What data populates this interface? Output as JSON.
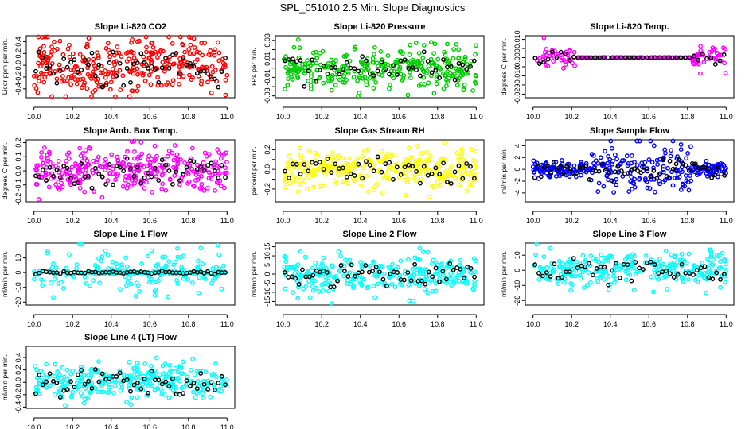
{
  "page": {
    "title": "SPL_051010  2.5 Min. Slope Diagnostics"
  },
  "chart_data": [
    {
      "type": "scatter",
      "title": "Slope Li-820 CO2",
      "xlabel": "",
      "ylabel": "Licor ppm per min.",
      "color": "#ff0000",
      "x_range": [
        10.0,
        11.0
      ],
      "ylim": [
        -0.55,
        0.5
      ],
      "xticks": [
        10.0,
        10.2,
        10.4,
        10.6,
        10.8,
        11.0
      ],
      "xtick_labels": [
        "10.0",
        "10.2",
        "10.4",
        "10.6",
        "10.8",
        "11.0"
      ],
      "yticks": [
        -0.4,
        -0.2,
        0.0,
        0.2,
        0.4
      ],
      "ytick_labels": [
        "-0.4",
        "-0.2",
        "0.0",
        "0.2",
        "0.4"
      ],
      "pattern": "uniform",
      "spread": 0.28,
      "n_points": 320,
      "n_black": 55,
      "seed": 11
    },
    {
      "type": "scatter",
      "title": "Slope Li-820 Pressure",
      "xlabel": "",
      "ylabel": "kPa per min.",
      "color": "#00cc00",
      "x_range": [
        10.0,
        11.0
      ],
      "ylim": [
        -0.032,
        0.035
      ],
      "xticks": [
        10.0,
        10.2,
        10.4,
        10.6,
        10.8,
        11.0
      ],
      "xtick_labels": [
        "10.0",
        "10.2",
        "10.4",
        "10.6",
        "10.8",
        "11.0"
      ],
      "yticks": [
        -0.03,
        -0.02,
        -0.01,
        0.0,
        0.01,
        0.02,
        0.03
      ],
      "ytick_labels": [
        "-0.03",
        "",
        "-0.01",
        "",
        "0.01",
        "",
        "0.03"
      ],
      "pattern": "uniform",
      "spread": 0.012,
      "n_points": 320,
      "n_black": 50,
      "seed": 23
    },
    {
      "type": "scatter",
      "title": "Slope Li-820 Temp.",
      "xlabel": "",
      "ylabel": "degrees C per min.",
      "color": "#ff00ff",
      "x_range": [
        10.0,
        11.0
      ],
      "ylim": [
        -0.022,
        0.012
      ],
      "xticks": [
        10.0,
        10.2,
        10.4,
        10.6,
        10.8,
        11.0
      ],
      "xtick_labels": [
        "10.0",
        "10.2",
        "10.4",
        "10.6",
        "10.8",
        "11.0"
      ],
      "yticks": [
        -0.02,
        -0.015,
        -0.01,
        -0.005,
        0.0,
        0.005,
        0.01
      ],
      "ytick_labels": [
        "-0.020",
        "",
        "-0.010",
        "",
        "0.000",
        "",
        "0.010"
      ],
      "pattern": "edges",
      "spread": 0.004,
      "n_points": 220,
      "n_black": 45,
      "seed": 37
    },
    {
      "type": "scatter",
      "title": "Slope Amb. Box Temp.",
      "xlabel": "",
      "ylabel": "degrees C per min.",
      "color": "#ff00ff",
      "x_range": [
        10.0,
        11.0
      ],
      "ylim": [
        -0.22,
        0.22
      ],
      "xticks": [
        10.0,
        10.2,
        10.4,
        10.6,
        10.8,
        11.0
      ],
      "xtick_labels": [
        "10.0",
        "10.2",
        "10.4",
        "10.6",
        "10.8",
        "11.0"
      ],
      "yticks": [
        -0.2,
        -0.1,
        0.0,
        0.1,
        0.2
      ],
      "ytick_labels": [
        "-0.2",
        "-0.1",
        "0.0",
        "0.1",
        "0.2"
      ],
      "pattern": "uniform",
      "spread": 0.09,
      "n_points": 320,
      "n_black": 55,
      "seed": 41
    },
    {
      "type": "scatter",
      "title": "Slope Gas Stream RH",
      "xlabel": "",
      "ylabel": "percent per min.",
      "color": "#ffff00",
      "x_range": [
        10.0,
        11.0
      ],
      "ylim": [
        -0.33,
        0.3
      ],
      "xticks": [
        10.0,
        10.2,
        10.4,
        10.6,
        10.8,
        11.0
      ],
      "xtick_labels": [
        "10.0",
        "10.2",
        "10.4",
        "10.6",
        "10.8",
        "11.0"
      ],
      "yticks": [
        -0.2,
        -0.1,
        0.0,
        0.1,
        0.2
      ],
      "ytick_labels": [
        "-0.2",
        "",
        "0.0",
        "",
        "0.2"
      ],
      "pattern": "uniform",
      "spread": 0.11,
      "n_points": 300,
      "n_black": 50,
      "seed": 53
    },
    {
      "type": "scatter",
      "title": "Slope Sample Flow",
      "xlabel": "",
      "ylabel": "ml/min per min.",
      "color": "#0000ff",
      "x_range": [
        10.0,
        11.0
      ],
      "ylim": [
        -5.5,
        5.0
      ],
      "xticks": [
        10.0,
        10.2,
        10.4,
        10.6,
        10.8,
        11.0
      ],
      "xtick_labels": [
        "10.0",
        "10.2",
        "10.4",
        "10.6",
        "10.8",
        "11.0"
      ],
      "yticks": [
        -4,
        -2,
        0,
        2,
        4
      ],
      "ytick_labels": [
        "-4",
        "-2",
        "0",
        "2",
        "4"
      ],
      "pattern": "middle",
      "spread": 2.0,
      "n_points": 320,
      "n_black": 60,
      "seed": 67
    },
    {
      "type": "scatter",
      "title": "Slope Line 1 Flow",
      "xlabel": "",
      "ylabel": "ml/min per min.",
      "color": "#00ffff",
      "x_range": [
        10.0,
        11.0
      ],
      "ylim": [
        -22,
        20
      ],
      "xticks": [
        10.0,
        10.2,
        10.4,
        10.6,
        10.8,
        11.0
      ],
      "xtick_labels": [
        "10.0",
        "10.2",
        "10.4",
        "10.6",
        "10.8",
        "11.0"
      ],
      "yticks": [
        -20,
        -10,
        0,
        10
      ],
      "ytick_labels": [
        "-20",
        "-10",
        "0",
        "10"
      ],
      "pattern": "flat",
      "spread": 9.0,
      "n_points": 260,
      "n_black": 55,
      "seed": 71
    },
    {
      "type": "scatter",
      "title": "Slope Line 2 Flow",
      "xlabel": "",
      "ylabel": "ml/min per min.",
      "color": "#00ffff",
      "x_range": [
        10.0,
        11.0
      ],
      "ylim": [
        -17,
        17
      ],
      "xticks": [
        10.0,
        10.2,
        10.4,
        10.6,
        10.8,
        11.0
      ],
      "xtick_labels": [
        "10.0",
        "10.2",
        "10.4",
        "10.6",
        "10.8",
        "11.0"
      ],
      "yticks": [
        -15,
        -10,
        -5,
        0,
        5,
        10,
        15
      ],
      "ytick_labels": [
        "-15",
        "-10",
        "-5",
        "0",
        "5",
        "10",
        "15"
      ],
      "pattern": "uniform",
      "spread": 5.5,
      "n_points": 280,
      "n_black": 55,
      "seed": 83
    },
    {
      "type": "scatter",
      "title": "Slope Line 3 Flow",
      "xlabel": "",
      "ylabel": "ml/min per min.",
      "color": "#00ffff",
      "x_range": [
        10.0,
        11.0
      ],
      "ylim": [
        -23,
        18
      ],
      "xticks": [
        10.0,
        10.2,
        10.4,
        10.6,
        10.8,
        11.0
      ],
      "xtick_labels": [
        "10.0",
        "10.2",
        "10.4",
        "10.6",
        "10.8",
        "11.0"
      ],
      "yticks": [
        -20,
        -10,
        0,
        10
      ],
      "ytick_labels": [
        "-20",
        "-10",
        "0",
        "10"
      ],
      "pattern": "uniform",
      "spread": 7.0,
      "n_points": 280,
      "n_black": 50,
      "seed": 97
    },
    {
      "type": "scatter",
      "title": "Slope Line 4 (LT) Flow",
      "xlabel": "",
      "ylabel": "ml/min per min.",
      "color": "#00ffff",
      "x_range": [
        10.0,
        11.0
      ],
      "ylim": [
        -0.42,
        0.58
      ],
      "xticks": [
        10.0,
        10.2,
        10.4,
        10.6,
        10.8,
        11.0
      ],
      "xtick_labels": [
        "10.0",
        "10.2",
        "10.4",
        "10.6",
        "10.8",
        "11.0"
      ],
      "yticks": [
        -0.4,
        -0.2,
        0.0,
        0.2,
        0.4
      ],
      "ytick_labels": [
        "-0.4",
        "-0.2",
        "0.0",
        "0.2",
        "0.4"
      ],
      "pattern": "uniform",
      "spread": 0.16,
      "n_points": 300,
      "n_black": 55,
      "seed": 109
    }
  ]
}
